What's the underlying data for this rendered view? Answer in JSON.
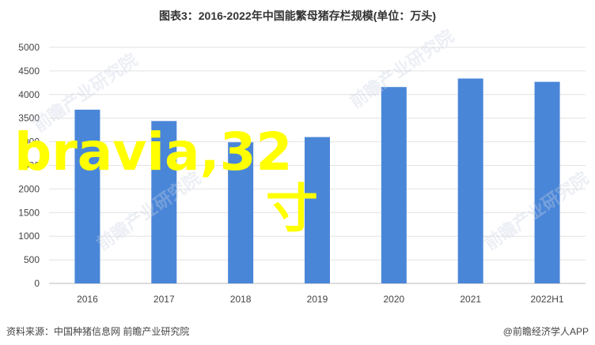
{
  "title": "图表3：2016-2022年中国能繁母猪存栏规模(单位：万头)",
  "source": "资料来源：中国种猪信息网 前瞻产业研究院",
  "brand": "@前瞻经济学人APP",
  "watermark": "前瞻产业研究院",
  "overlay": {
    "line1": "bravia,32",
    "line2": "寸"
  },
  "colors": {
    "bar": "#4a86d8",
    "grid": "#e2e2e2",
    "overlay": "#ffff00"
  },
  "chart_data": {
    "type": "bar",
    "categories": [
      "2016",
      "2017",
      "2018",
      "2019",
      "2020",
      "2021",
      "2022H1"
    ],
    "values": [
      3680,
      3440,
      2990,
      3100,
      4160,
      4340,
      4270
    ],
    "yticks": [
      0,
      500,
      1000,
      1500,
      2000,
      2500,
      3000,
      3500,
      4000,
      4500,
      5000
    ],
    "ylim": [
      0,
      5000
    ],
    "grid": true
  }
}
